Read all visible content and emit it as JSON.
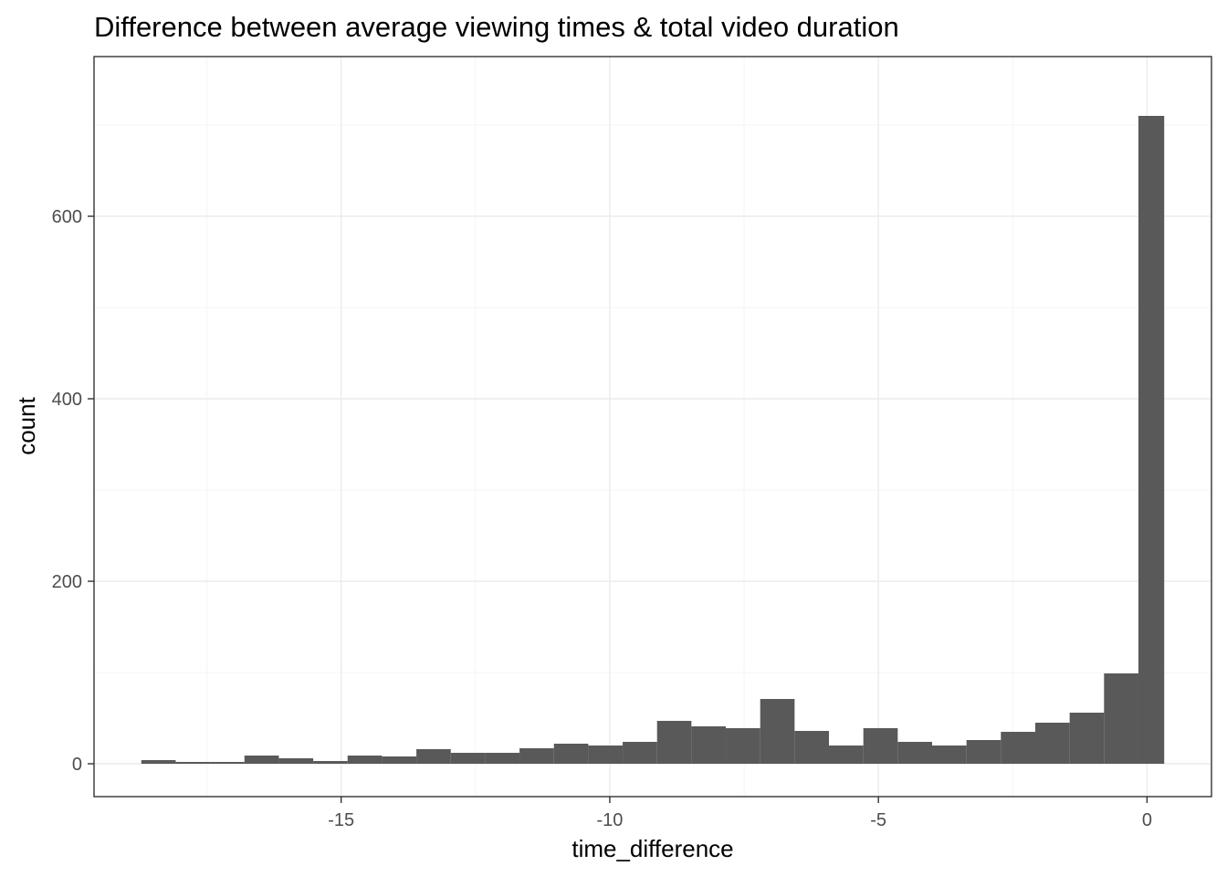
{
  "chart_data": {
    "type": "histogram",
    "title": "Difference between average viewing times & total video duration",
    "xlabel": "time_difference",
    "ylabel": "count",
    "xlim": [
      -19.6,
      1.2
    ],
    "ylim": [
      -36,
      775
    ],
    "binwidth": 0.64,
    "bins": [
      {
        "x0": -18.72,
        "x1": -18.08,
        "count": 4
      },
      {
        "x0": -18.08,
        "x1": -17.44,
        "count": 2
      },
      {
        "x0": -17.44,
        "x1": -16.8,
        "count": 2
      },
      {
        "x0": -16.8,
        "x1": -16.16,
        "count": 9
      },
      {
        "x0": -16.16,
        "x1": -15.52,
        "count": 6
      },
      {
        "x0": -15.52,
        "x1": -14.88,
        "count": 3
      },
      {
        "x0": -14.88,
        "x1": -14.24,
        "count": 9
      },
      {
        "x0": -14.24,
        "x1": -13.6,
        "count": 8
      },
      {
        "x0": -13.6,
        "x1": -12.96,
        "count": 16
      },
      {
        "x0": -12.96,
        "x1": -12.32,
        "count": 12
      },
      {
        "x0": -12.32,
        "x1": -11.68,
        "count": 12
      },
      {
        "x0": -11.68,
        "x1": -11.04,
        "count": 17
      },
      {
        "x0": -11.04,
        "x1": -10.4,
        "count": 22
      },
      {
        "x0": -10.4,
        "x1": -9.76,
        "count": 20
      },
      {
        "x0": -9.76,
        "x1": -9.12,
        "count": 24
      },
      {
        "x0": -9.12,
        "x1": -8.48,
        "count": 47
      },
      {
        "x0": -8.48,
        "x1": -7.84,
        "count": 41
      },
      {
        "x0": -7.84,
        "x1": -7.2,
        "count": 39
      },
      {
        "x0": -7.2,
        "x1": -6.56,
        "count": 71
      },
      {
        "x0": -6.56,
        "x1": -5.92,
        "count": 36
      },
      {
        "x0": -5.92,
        "x1": -5.28,
        "count": 20
      },
      {
        "x0": -5.28,
        "x1": -4.64,
        "count": 39
      },
      {
        "x0": -4.64,
        "x1": -4.0,
        "count": 24
      },
      {
        "x0": -4.0,
        "x1": -3.36,
        "count": 20
      },
      {
        "x0": -3.36,
        "x1": -2.72,
        "count": 26
      },
      {
        "x0": -2.72,
        "x1": -2.08,
        "count": 35
      },
      {
        "x0": -2.08,
        "x1": -1.44,
        "count": 45
      },
      {
        "x0": -1.44,
        "x1": -0.8,
        "count": 56
      },
      {
        "x0": -0.8,
        "x1": -0.16,
        "count": 99
      },
      {
        "x0": -0.16,
        "x1": 0.32,
        "count": 710
      }
    ],
    "x_ticks": [
      {
        "value": -15,
        "label": "-15"
      },
      {
        "value": -10,
        "label": "-10"
      },
      {
        "value": -5,
        "label": "-5"
      },
      {
        "value": 0,
        "label": "0"
      }
    ],
    "y_ticks": [
      {
        "value": 0,
        "label": "0"
      },
      {
        "value": 200,
        "label": "200"
      },
      {
        "value": 400,
        "label": "400"
      },
      {
        "value": 600,
        "label": "600"
      }
    ],
    "x_minor": [
      -17.5,
      -12.5,
      -7.5,
      -2.5
    ],
    "y_minor": [
      100,
      300,
      500,
      700
    ],
    "grid": true,
    "legend": "none",
    "bar_color": "#595959"
  }
}
